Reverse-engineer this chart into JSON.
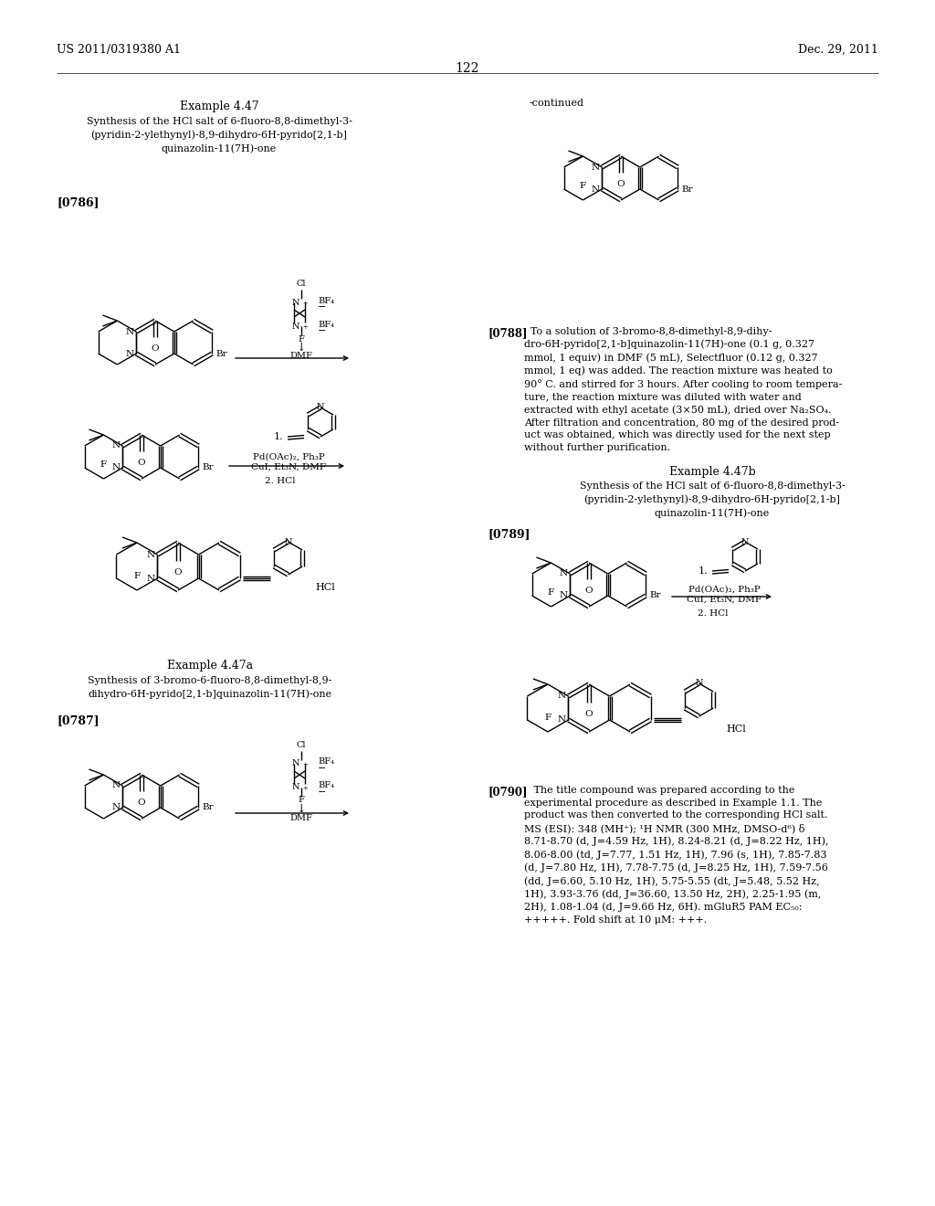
{
  "page_header_left": "US 2011/0319380 A1",
  "page_header_right": "Dec. 29, 2011",
  "page_number": "122",
  "background_color": "#ffffff",
  "text_color": "#000000"
}
